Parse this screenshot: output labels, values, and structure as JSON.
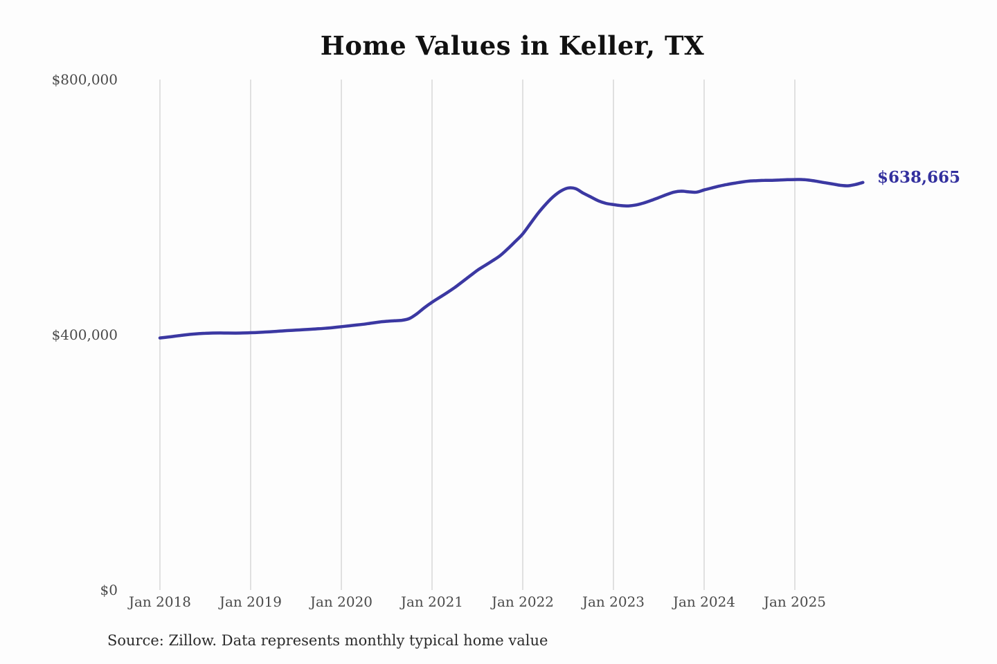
{
  "page": {
    "background_color": "#fdfdfd"
  },
  "source_note": "Source: Zillow. Data represents monthly typical home value",
  "chart_data": {
    "type": "line",
    "title": "Home Values in Keller, TX",
    "xlabel": "",
    "ylabel": "",
    "ylim": [
      0,
      800000
    ],
    "grid": "vertical-only",
    "legend": "none",
    "x_tick_labels": [
      "Jan 2018",
      "Jan 2019",
      "Jan 2020",
      "Jan 2021",
      "Jan 2022",
      "Jan 2023",
      "Jan 2024",
      "Jan 2025"
    ],
    "y_ticks": [
      {
        "label": "$0",
        "value": 0
      },
      {
        "label": "$400,000",
        "value": 400000
      },
      {
        "label": "$800,000",
        "value": 800000
      }
    ],
    "series": [
      {
        "start_month": "2018-01",
        "frequency": "monthly",
        "values": [
          395000,
          396300,
          397800,
          399300,
          400600,
          401600,
          402300,
          402700,
          402800,
          402700,
          402600,
          402800,
          403200,
          403700,
          404300,
          405000,
          405800,
          406600,
          407300,
          408000,
          408700,
          409400,
          410300,
          411400,
          412700,
          414000,
          415300,
          416600,
          418300,
          419900,
          421100,
          422000,
          422700,
          425500,
          433000,
          442500,
          451000,
          458500,
          466000,
          474000,
          483000,
          492000,
          501000,
          508500,
          516000,
          524000,
          534500,
          546000,
          558000,
          574000,
          590000,
          604000,
          616000,
          625000,
          630000,
          629000,
          622000,
          616000,
          610000,
          606000,
          604000,
          602500,
          602000,
          603500,
          606500,
          610500,
          615000,
          619500,
          623500,
          625000,
          624000,
          623500,
          627000,
          630000,
          633000,
          635500,
          637500,
          639500,
          641000,
          641500,
          642000,
          642000,
          642500,
          643000,
          643200,
          643300,
          642200,
          640300,
          638300,
          636300,
          634300,
          633500,
          635500,
          638665
        ]
      }
    ],
    "end_label": "$638,665",
    "end_value": 638665,
    "colors": {
      "line": "#3b38a2",
      "end_label": "#33309e",
      "grid": "#cccccc",
      "tick_text": "#4a4a4a",
      "title_text": "#111111"
    }
  }
}
